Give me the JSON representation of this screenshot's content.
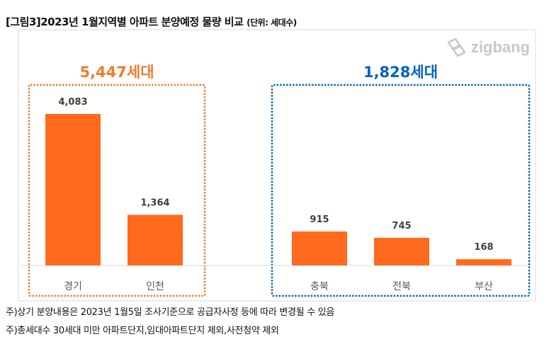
{
  "title": "[그림3]2023년 1월지역별 아파트 분양예정 물량 비교",
  "unit": "(단위: 세대수)",
  "logo": "zigbang",
  "notes": [
    "주)상기 분양내용은 2023년 1월5일 조사기준으로 공급자사정 등에 따라 변경될 수 있음",
    "주)총세대수 30세대 미만 아파트단지,임대아파트단지 제외,사전청약 제외"
  ],
  "chart_data": {
    "type": "bar",
    "categories": [
      "경기",
      "인천",
      "충북",
      "전북",
      "부산"
    ],
    "values": [
      4083,
      1364,
      915,
      745,
      168
    ],
    "value_labels": [
      "4,083",
      "1,364",
      "915",
      "745",
      "168"
    ],
    "ylim": [
      0,
      4083
    ],
    "groups": [
      {
        "label": "5,447세대",
        "members": [
          "경기",
          "인천"
        ],
        "color": "#ED7D31"
      },
      {
        "label": "1,828세대",
        "members": [
          "충북",
          "전북",
          "부산"
        ],
        "color": "#0563C1"
      }
    ],
    "bar_color": "#FF6A1F",
    "grid": false
  }
}
